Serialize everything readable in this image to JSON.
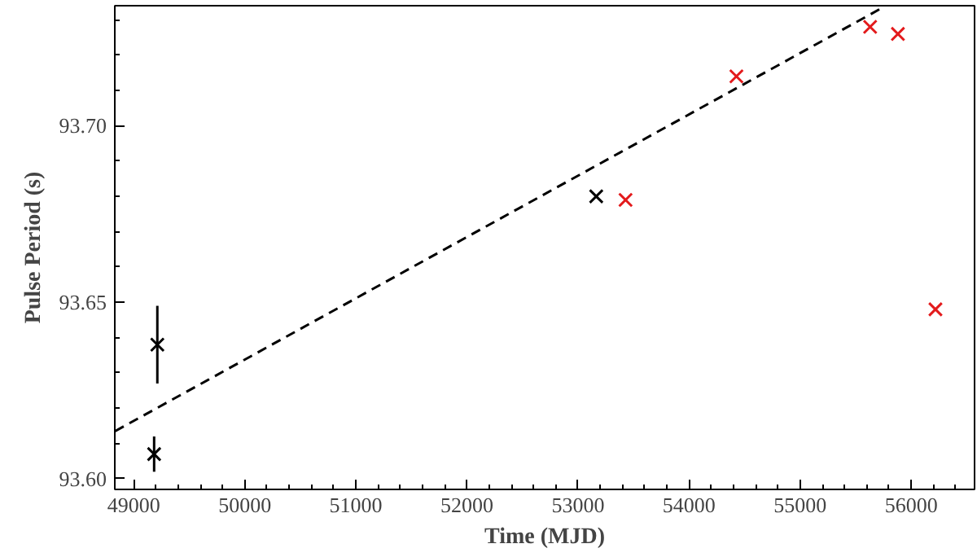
{
  "chart_data": {
    "type": "scatter",
    "xlabel": "Time (MJD)",
    "ylabel": "Pulse Period (s)",
    "xlim": [
      48830,
      56570
    ],
    "ylim": [
      93.597,
      93.734
    ],
    "xticks": [
      49000,
      50000,
      51000,
      52000,
      53000,
      54000,
      55000,
      56000
    ],
    "yticks": [
      {
        "value": 93.6,
        "label": "93.60"
      },
      {
        "value": 93.65,
        "label": "93.65"
      },
      {
        "value": 93.7,
        "label": "93.70"
      }
    ],
    "grid": false,
    "marker": "cross",
    "series": [
      {
        "color": "#000000",
        "x": [
          49213,
          49184,
          53164
        ],
        "values": [
          93.638,
          93.607,
          93.68
        ],
        "errors": [
          0.011,
          0.005,
          null
        ]
      },
      {
        "color": "#e31a1c",
        "x": [
          53428,
          54426,
          55630,
          55880,
          56218
        ],
        "values": [
          93.679,
          93.714,
          93.728,
          93.726,
          93.648
        ]
      },
      {
        "type": "line",
        "line_style": "dashed",
        "color": "#000000",
        "marker": "none",
        "x": [
          48833,
          55750
        ],
        "values": [
          93.6135,
          93.7336
        ]
      }
    ]
  }
}
